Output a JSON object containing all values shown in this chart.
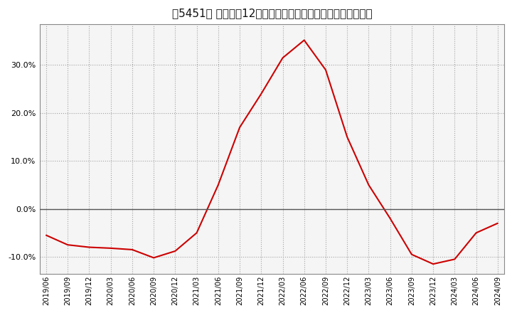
{
  "title": "［5451］ 売上高の12か月移動合計の対前年同期増減率の推移",
  "line_color": "#cc0000",
  "background_color": "#ffffff",
  "plot_bg_color": "#f0f0f0",
  "grid_color": "#aaaaaa",
  "dates": [
    "2019/06",
    "2019/09",
    "2019/12",
    "2020/03",
    "2020/06",
    "2020/09",
    "2020/12",
    "2021/03",
    "2021/06",
    "2021/09",
    "2021/12",
    "2022/03",
    "2022/06",
    "2022/09",
    "2022/12",
    "2023/03",
    "2023/06",
    "2023/09",
    "2023/12",
    "2024/03",
    "2024/06",
    "2024/09"
  ],
  "values": [
    -5.5,
    -7.5,
    -8.0,
    -8.2,
    -8.5,
    -10.2,
    -8.8,
    -5.0,
    5.0,
    17.0,
    24.0,
    31.5,
    35.2,
    29.0,
    15.0,
    5.0,
    -2.0,
    -9.5,
    -11.5,
    -10.5,
    -5.0,
    -3.0
  ],
  "yticks": [
    -10.0,
    0.0,
    10.0,
    20.0,
    30.0
  ],
  "ylim": [
    -13.5,
    38.5
  ]
}
